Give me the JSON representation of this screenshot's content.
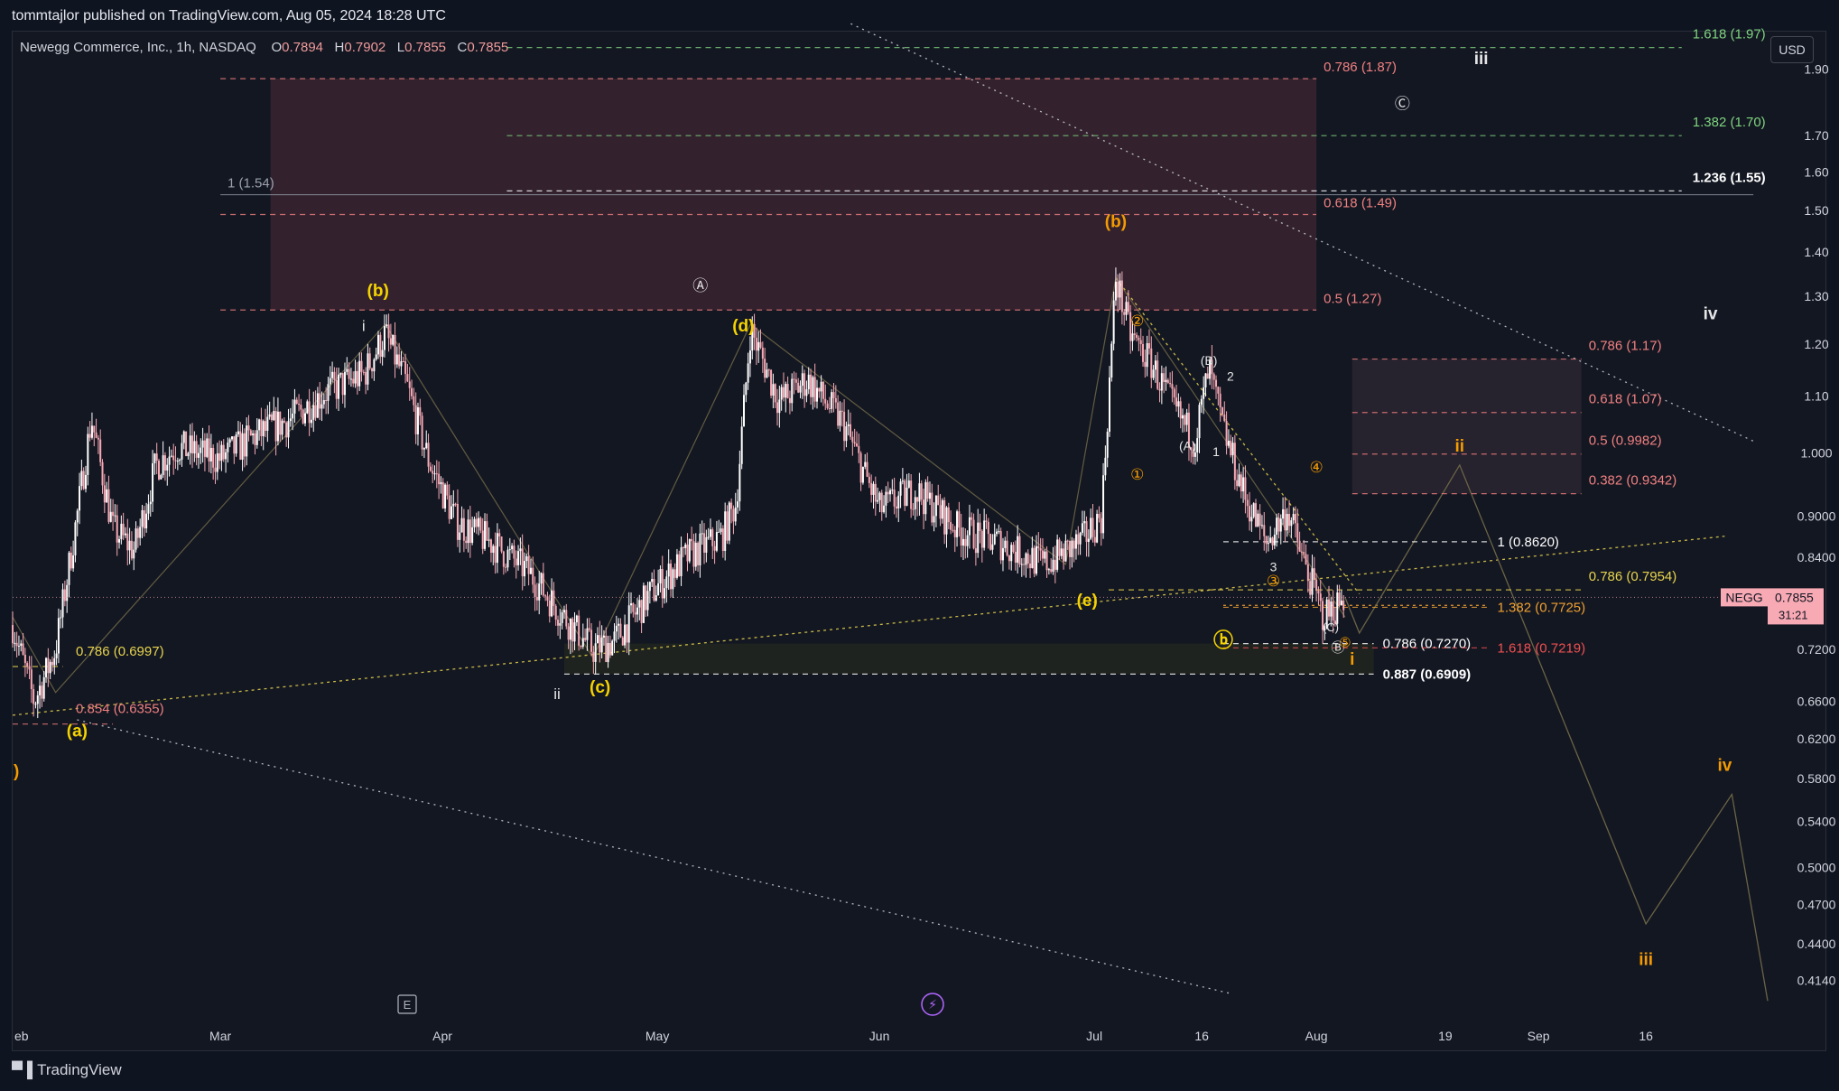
{
  "header": {
    "published": "tommtajlor published on TradingView.com, Aug 05, 2024 18:28 UTC"
  },
  "legend": {
    "symbol_info": "Newegg Commerce, Inc., 1h, NASDAQ",
    "o_label": "O",
    "o": "0.7894",
    "h_label": "H",
    "h": "0.7902",
    "l_label": "L",
    "l": "0.7855",
    "c_label": "C",
    "c": "0.7855"
  },
  "currency_label": "USD",
  "footer_brand": "TradingView",
  "colors": {
    "background": "#131722",
    "candle_up": "#ffffff",
    "candle_down": "#f7a9b4",
    "fib_red": "#f08080",
    "fib_green": "#7fd47f",
    "fib_yellow": "#e8d44d",
    "fib_orange": "#f0a030",
    "wave_yellow": "#f5d300",
    "wave_orange": "#f59b00"
  },
  "chart_data": {
    "type": "candlestick",
    "symbol": "NEGG",
    "interval": "1h",
    "y_axis": {
      "scale": "log",
      "ticks": [
        "1.90",
        "1.70",
        "1.60",
        "1.50",
        "1.40",
        "1.30",
        "1.20",
        "1.10",
        "1.000",
        "0.9000",
        "0.8400",
        "0.7200",
        "0.6600",
        "0.6200",
        "0.5800",
        "0.5400",
        "0.5000",
        "0.4700",
        "0.4400",
        "0.4140"
      ],
      "range": [
        0.39,
        2.02
      ]
    },
    "x_axis": {
      "range": [
        "2024-02-01",
        "2024-10-03"
      ],
      "ticks": [
        {
          "date": "2024-02-01",
          "label": "eb"
        },
        {
          "date": "2024-03-01",
          "label": "Mar"
        },
        {
          "date": "2024-04-01",
          "label": "Apr"
        },
        {
          "date": "2024-05-01",
          "label": "May"
        },
        {
          "date": "2024-06-01",
          "label": "Jun"
        },
        {
          "date": "2024-07-01",
          "label": "Jul"
        },
        {
          "date": "2024-07-16",
          "label": "16"
        },
        {
          "date": "2024-08-01",
          "label": "Aug"
        },
        {
          "date": "2024-08-19",
          "label": "19"
        },
        {
          "date": "2024-09-01",
          "label": "Sep"
        },
        {
          "date": "2024-09-16",
          "label": "16"
        }
      ]
    },
    "last_price": {
      "symbol_tag": "NEGG",
      "price": "0.7855",
      "countdown": "31:21",
      "value": 0.7855
    },
    "price_path": [
      [
        "2024-02-01",
        0.75
      ],
      [
        "2024-02-04",
        0.66
      ],
      [
        "2024-02-07",
        0.72
      ],
      [
        "2024-02-10",
        0.9
      ],
      [
        "2024-02-12",
        1.06
      ],
      [
        "2024-02-15",
        0.88
      ],
      [
        "2024-02-18",
        0.85
      ],
      [
        "2024-02-21",
        0.98
      ],
      [
        "2024-02-24",
        1.01
      ],
      [
        "2024-03-01",
        0.99
      ],
      [
        "2024-03-06",
        1.03
      ],
      [
        "2024-03-11",
        1.06
      ],
      [
        "2024-03-16",
        1.11
      ],
      [
        "2024-03-21",
        1.14
      ],
      [
        "2024-03-24",
        1.22
      ],
      [
        "2024-03-27",
        1.12
      ],
      [
        "2024-03-30",
        0.99
      ],
      [
        "2024-04-03",
        0.89
      ],
      [
        "2024-04-08",
        0.86
      ],
      [
        "2024-04-13",
        0.82
      ],
      [
        "2024-04-18",
        0.76
      ],
      [
        "2024-04-22",
        0.72
      ],
      [
        "2024-04-25",
        0.73
      ],
      [
        "2024-04-30",
        0.79
      ],
      [
        "2024-05-05",
        0.84
      ],
      [
        "2024-05-10",
        0.87
      ],
      [
        "2024-05-12",
        0.92
      ],
      [
        "2024-05-14",
        1.23
      ],
      [
        "2024-05-18",
        1.09
      ],
      [
        "2024-05-22",
        1.13
      ],
      [
        "2024-05-27",
        1.05
      ],
      [
        "2024-06-01",
        0.91
      ],
      [
        "2024-06-06",
        0.94
      ],
      [
        "2024-06-12",
        0.88
      ],
      [
        "2024-06-18",
        0.86
      ],
      [
        "2024-06-24",
        0.83
      ],
      [
        "2024-06-29",
        0.86
      ],
      [
        "2024-07-02",
        0.9
      ],
      [
        "2024-07-04",
        1.34
      ],
      [
        "2024-07-06",
        1.22
      ],
      [
        "2024-07-09",
        1.16
      ],
      [
        "2024-07-12",
        1.08
      ],
      [
        "2024-07-15",
        1.02
      ],
      [
        "2024-07-17",
        1.15
      ],
      [
        "2024-07-19",
        1.04
      ],
      [
        "2024-07-22",
        0.93
      ],
      [
        "2024-07-25",
        0.86
      ],
      [
        "2024-07-28",
        0.91
      ],
      [
        "2024-07-30",
        0.84
      ],
      [
        "2024-08-02",
        0.76
      ],
      [
        "2024-08-05",
        0.7855
      ]
    ],
    "fib_levels": [
      {
        "label": "1.618 (1.97)",
        "price": 1.97,
        "color": "#7fd47f",
        "x0": "2024-04-10",
        "x1": "2024-09-21"
      },
      {
        "label": "0.786 (1.87)",
        "price": 1.87,
        "color": "#f08080",
        "x0": "2024-03-01",
        "x1": "2024-08-01"
      },
      {
        "label": "1.382 (1.70)",
        "price": 1.7,
        "color": "#7fd47f",
        "x0": "2024-04-10",
        "x1": "2024-09-21"
      },
      {
        "label": "1 (1.54)",
        "price": 1.54,
        "color": "#9aa0ac",
        "x0": "2024-03-01",
        "x1": "2024-10-01"
      },
      {
        "label": "1.236 (1.55)",
        "price": 1.55,
        "color": "#ffffff",
        "x0": "2024-04-10",
        "x1": "2024-09-21"
      },
      {
        "label": "0.618 (1.49)",
        "price": 1.49,
        "color": "#f08080",
        "x0": "2024-03-01",
        "x1": "2024-08-01"
      },
      {
        "label": "0.5 (1.27)",
        "price": 1.27,
        "color": "#f08080",
        "x0": "2024-03-01",
        "x1": "2024-08-01"
      },
      {
        "label": "0.786 (1.17)",
        "price": 1.17,
        "color": "#f08080",
        "x0": "2024-08-06",
        "x1": "2024-09-07"
      },
      {
        "label": "0.618 (1.07)",
        "price": 1.07,
        "color": "#f08080",
        "x0": "2024-08-06",
        "x1": "2024-09-07"
      },
      {
        "label": "0.5 (0.9982)",
        "price": 0.9982,
        "color": "#f08080",
        "x0": "2024-08-06",
        "x1": "2024-09-07"
      },
      {
        "label": "0.382 (0.9342)",
        "price": 0.9342,
        "color": "#f08080",
        "x0": "2024-08-06",
        "x1": "2024-09-07"
      },
      {
        "label": "1 (0.8620)",
        "price": 0.862,
        "color": "#ffffff",
        "x0": "2024-07-19",
        "x1": "2024-08-25"
      },
      {
        "label": "0.786 (0.7954)",
        "price": 0.7954,
        "color": "#e8d44d",
        "x0": "2024-07-03",
        "x1": "2024-09-07"
      },
      {
        "label": "1.382 (0.7725)",
        "price": 0.7725,
        "color": "#f0a030",
        "x0": "2024-07-19",
        "x1": "2024-08-25"
      },
      {
        "label": "0.786 (0.7270)",
        "price": 0.727,
        "color": "#ffffff",
        "x0": "2024-07-19",
        "x1": "2024-08-09"
      },
      {
        "label": "1.618 (0.7219)",
        "price": 0.7219,
        "color": "#f05050",
        "x0": "2024-07-19",
        "x1": "2024-08-25"
      },
      {
        "label": "0.887 (0.6909)",
        "price": 0.6909,
        "color": "#ffffff",
        "x0": "2024-04-18",
        "x1": "2024-08-09"
      },
      {
        "label": "0.786 (0.6997)",
        "price": 0.6997,
        "color": "#e8d44d",
        "x0": "2024-02-01",
        "x1": "2024-02-08"
      },
      {
        "label": "0.854 (0.6355)",
        "price": 0.6355,
        "color": "#f08080",
        "x0": "2024-02-01",
        "x1": "2024-02-15"
      }
    ],
    "zones": [
      {
        "name": "upper-resistance-zone",
        "x0": "2024-03-08",
        "x1": "2024-08-01",
        "p_top": 1.87,
        "p_bottom": 1.27,
        "color": "#3a2430"
      },
      {
        "name": "mid-resistance-zone",
        "x0": "2024-08-06",
        "x1": "2024-09-07",
        "p_top": 1.17,
        "p_bottom": 0.9342,
        "color": "#2a2430"
      },
      {
        "name": "support-zone",
        "x0": "2024-04-18",
        "x1": "2024-08-09",
        "p_top": 0.727,
        "p_bottom": 0.6909,
        "color": "#22261f"
      }
    ],
    "wave_labels": [
      {
        "text": "(b)",
        "date": "2024-03-23",
        "price": 1.31,
        "color": "#f5d300",
        "size": 19
      },
      {
        "text": "i",
        "date": "2024-03-21",
        "price": 1.235,
        "color": "#e6e6e6",
        "size": 17
      },
      {
        "text": "Ⓐ",
        "date": "2024-05-07",
        "price": 1.32,
        "color": "#e6e6e6",
        "size": 17
      },
      {
        "text": "(d)",
        "date": "2024-05-13",
        "price": 1.235,
        "color": "#f5d300",
        "size": 19
      },
      {
        "text": "(b)",
        "date": "2024-07-04",
        "price": 1.47,
        "color": "#f59b00",
        "size": 19
      },
      {
        "text": "②",
        "date": "2024-07-07",
        "price": 1.245,
        "color": "#f59b00",
        "size": 17
      },
      {
        "text": "(B)",
        "date": "2024-07-17",
        "price": 1.165,
        "color": "#e6e6e6",
        "size": 14
      },
      {
        "text": "2",
        "date": "2024-07-20",
        "price": 1.135,
        "color": "#e6e6e6",
        "size": 14
      },
      {
        "text": "(A)",
        "date": "2024-07-14",
        "price": 1.01,
        "color": "#e6e6e6",
        "size": 14
      },
      {
        "text": "1",
        "date": "2024-07-18",
        "price": 1.0,
        "color": "#e6e6e6",
        "size": 14
      },
      {
        "text": "①",
        "date": "2024-07-07",
        "price": 0.963,
        "color": "#f59b00",
        "size": 17
      },
      {
        "text": "④",
        "date": "2024-08-01",
        "price": 0.975,
        "color": "#f59b00",
        "size": 17
      },
      {
        "text": "ii",
        "date": "2024-08-21",
        "price": 1.01,
        "color": "#f59b00",
        "size": 19
      },
      {
        "text": "③",
        "date": "2024-07-26",
        "price": 0.806,
        "color": "#f59b00",
        "size": 17
      },
      {
        "text": "3",
        "date": "2024-07-26",
        "price": 0.825,
        "color": "#e6e6e6",
        "size": 14
      },
      {
        "text": "(e)",
        "date": "2024-06-30",
        "price": 0.78,
        "color": "#f5d300",
        "size": 19
      },
      {
        "text": "ⓑ",
        "date": "2024-07-19",
        "price": 0.729,
        "color": "#f5d300",
        "size": 22
      },
      {
        "text": "(C)",
        "date": "2024-08-03",
        "price": 0.746,
        "color": "#e6e6e6",
        "size": 13
      },
      {
        "text": "Ⓑ",
        "date": "2024-08-04",
        "price": 0.721,
        "color": "#e6e6e6",
        "size": 15
      },
      {
        "text": "⑤",
        "date": "2024-08-05",
        "price": 0.727,
        "color": "#f59b00",
        "size": 15
      },
      {
        "text": "i",
        "date": "2024-08-06",
        "price": 0.707,
        "color": "#f59b00",
        "size": 19
      },
      {
        "text": "ii",
        "date": "2024-04-17",
        "price": 0.667,
        "color": "#e6e6e6",
        "size": 17
      },
      {
        "text": "(c)",
        "date": "2024-04-23",
        "price": 0.675,
        "color": "#f5d300",
        "size": 19
      },
      {
        "text": "(a)",
        "date": "2024-02-10",
        "price": 0.627,
        "color": "#f5d300",
        "size": 19
      },
      {
        "text": "Ⓒ",
        "date": "2024-08-13",
        "price": 1.79,
        "color": "#e6e6e6",
        "size": 17
      },
      {
        "text": "iii",
        "date": "2024-08-24",
        "price": 1.93,
        "color": "#e6e6e6",
        "size": 19
      },
      {
        "text": "iv",
        "date": "2024-09-25",
        "price": 1.26,
        "color": "#e6e6e6",
        "size": 19
      },
      {
        "text": "iv",
        "date": "2024-09-27",
        "price": 0.592,
        "color": "#f59b00",
        "size": 19
      },
      {
        "text": "iii",
        "date": "2024-09-16",
        "price": 0.428,
        "color": "#f59b00",
        "size": 19
      }
    ]
  }
}
